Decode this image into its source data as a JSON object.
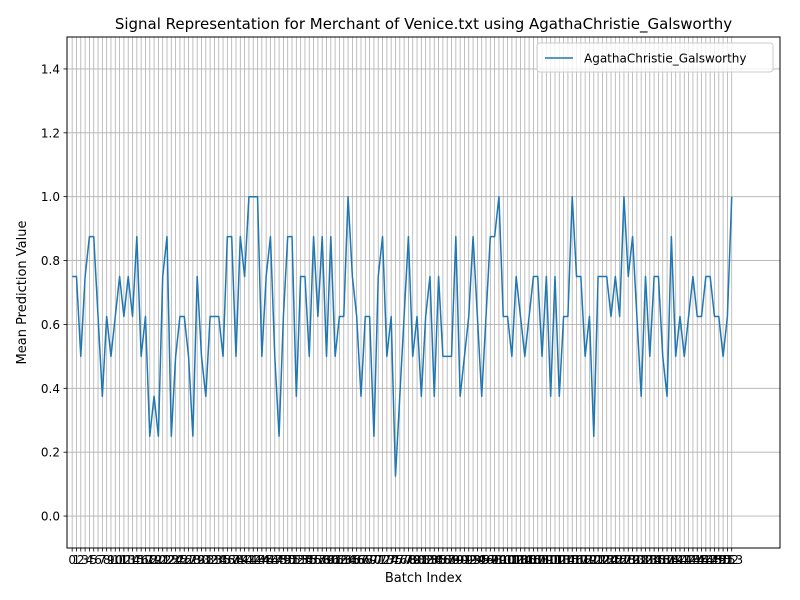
{
  "chart_data": {
    "type": "line",
    "title": "Signal Representation for Merchant of Venice.txt using AgathaChristie_Galsworthy",
    "xlabel": "Batch Index",
    "ylabel": "Mean Prediction Value",
    "ylim": [
      -0.1,
      1.5
    ],
    "xlim": [
      -1.2,
      164.2
    ],
    "yticks": [
      0.0,
      0.2,
      0.4,
      0.6,
      0.8,
      1.0,
      1.2,
      1.4
    ],
    "grid": true,
    "legend_position": "top-right",
    "series": [
      {
        "name": "AgathaChristie_Galsworthy",
        "color": "#1f77b4",
        "x_start": 0,
        "values": [
          0.75,
          0.75,
          0.5,
          0.75,
          0.875,
          0.875,
          0.625,
          0.375,
          0.625,
          0.5,
          0.625,
          0.75,
          0.625,
          0.75,
          0.625,
          0.875,
          0.5,
          0.625,
          0.25,
          0.375,
          0.25,
          0.75,
          0.875,
          0.25,
          0.5,
          0.625,
          0.625,
          0.5,
          0.25,
          0.75,
          0.5,
          0.375,
          0.625,
          0.625,
          0.625,
          0.5,
          0.875,
          0.875,
          0.5,
          0.875,
          0.75,
          1.0,
          1.0,
          1.0,
          0.5,
          0.75,
          0.875,
          0.5,
          0.25,
          0.625,
          0.875,
          0.875,
          0.375,
          0.75,
          0.75,
          0.5,
          0.875,
          0.625,
          0.875,
          0.5,
          0.875,
          0.5,
          0.625,
          0.625,
          1.0,
          0.75,
          0.625,
          0.375,
          0.625,
          0.625,
          0.25,
          0.75,
          0.875,
          0.5,
          0.625,
          0.125,
          0.375,
          0.625,
          0.875,
          0.5,
          0.625,
          0.375,
          0.625,
          0.75,
          0.375,
          0.75,
          0.5,
          0.5,
          0.5,
          0.875,
          0.375,
          0.5,
          0.625,
          0.875,
          0.625,
          0.375,
          0.625,
          0.875,
          0.875,
          1.0,
          0.625,
          0.625,
          0.5,
          0.75,
          0.625,
          0.5,
          0.625,
          0.75,
          0.75,
          0.5,
          0.75,
          0.375,
          0.75,
          0.375,
          0.625,
          0.625,
          1.0,
          0.75,
          0.75,
          0.5,
          0.625,
          0.25,
          0.75,
          0.75,
          0.75,
          0.625,
          0.75,
          0.625,
          1.0,
          0.75,
          0.875,
          0.625,
          0.375,
          0.75,
          0.5,
          0.75,
          0.75,
          0.5,
          0.375,
          0.875,
          0.5,
          0.625,
          0.5,
          0.625,
          0.75,
          0.625,
          0.625,
          0.75,
          0.75,
          0.625,
          0.625,
          0.5,
          0.625,
          1.0
        ]
      }
    ]
  }
}
